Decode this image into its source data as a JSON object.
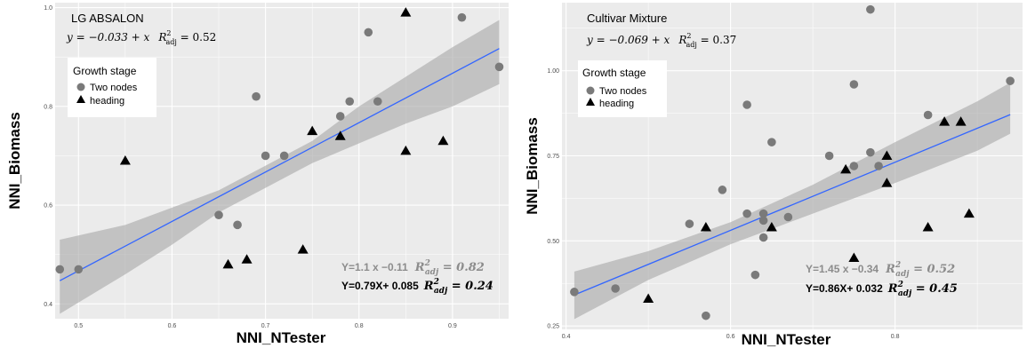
{
  "chart_data": [
    {
      "type": "scatter",
      "title": "LG ABSALON",
      "xlabel": "NNI_NTester",
      "ylabel": "NNI_Biomass",
      "xlim": [
        0.475,
        0.96
      ],
      "ylim": [
        0.37,
        1.01
      ],
      "x_ticks": [
        "0.5",
        "0.6",
        "0.7",
        "0.8",
        "0.9"
      ],
      "x_tick_values": [
        0.5,
        0.6,
        0.7,
        0.8,
        0.9
      ],
      "y_ticks": [
        "0.4",
        "0.6",
        "0.8",
        "1.0"
      ],
      "y_tick_values": [
        0.4,
        0.6,
        0.8,
        1.0
      ],
      "grid": true,
      "legend": {
        "title": "Growth stage",
        "position": "top-left",
        "entries": [
          "Two nodes",
          "heading"
        ]
      },
      "equation_top": {
        "main": "y = −0.033 + x",
        "r_label": "R",
        "r_sup": "2",
        "r_sub": "adj",
        "r_value": " = 0.52"
      },
      "fit_line": {
        "intercept": -0.033,
        "slope": 1.0,
        "color": "#3366ff"
      },
      "confidence_band": {
        "x": [
          0.48,
          0.55,
          0.6,
          0.65,
          0.7,
          0.75,
          0.8,
          0.85,
          0.9,
          0.95
        ],
        "upper": [
          0.53,
          0.56,
          0.595,
          0.63,
          0.68,
          0.73,
          0.8,
          0.86,
          0.92,
          0.975
        ],
        "lower": [
          0.38,
          0.46,
          0.52,
          0.585,
          0.635,
          0.685,
          0.725,
          0.765,
          0.8,
          0.845
        ]
      },
      "series": [
        {
          "name": "Two nodes",
          "marker": "circle",
          "color": "#7a7a7a",
          "x": [
            0.48,
            0.5,
            0.65,
            0.67,
            0.69,
            0.7,
            0.72,
            0.78,
            0.79,
            0.81,
            0.82,
            0.91,
            0.95
          ],
          "y": [
            0.47,
            0.47,
            0.58,
            0.56,
            0.82,
            0.7,
            0.7,
            0.78,
            0.81,
            0.95,
            0.81,
            0.98,
            0.88
          ]
        },
        {
          "name": "heading",
          "marker": "triangle",
          "color": "#000000",
          "x": [
            0.55,
            0.66,
            0.68,
            0.74,
            0.75,
            0.78,
            0.85,
            0.85,
            0.89
          ],
          "y": [
            0.69,
            0.48,
            0.49,
            0.51,
            0.75,
            0.74,
            0.99,
            0.71,
            0.73
          ]
        }
      ],
      "annotations": [
        {
          "text": "Y=1.1 x  −0.11",
          "r2": "R²adj = 0.82",
          "color": "grey"
        },
        {
          "text": "Y=0.79X+ 0.085",
          "r2": "R²adj = 0.24",
          "color": "black"
        }
      ]
    },
    {
      "type": "scatter",
      "title": "Cultivar Mixture",
      "xlabel": "NNI_NTester",
      "ylabel": "NNI_Biomass",
      "xlim": [
        0.395,
        0.955
      ],
      "ylim": [
        0.24,
        1.2
      ],
      "x_ticks": [
        "0.4",
        "0.6",
        "0.8"
      ],
      "x_tick_values": [
        0.4,
        0.6,
        0.8
      ],
      "y_ticks": [
        "0.25",
        "0.50",
        "0.75",
        "1.00"
      ],
      "y_tick_values": [
        0.25,
        0.5,
        0.75,
        1.0
      ],
      "grid": true,
      "legend": {
        "title": "Growth stage",
        "position": "top-left",
        "entries": [
          "Two nodes",
          "heading"
        ]
      },
      "equation_top": {
        "main": "y = −0.069 + x",
        "r_label": "R",
        "r_sup": "2",
        "r_sub": "adj",
        "r_value": " = 0.37"
      },
      "fit_line": {
        "intercept": -0.069,
        "slope": 1.0,
        "color": "#3366ff"
      },
      "confidence_band": {
        "x": [
          0.41,
          0.5,
          0.6,
          0.7,
          0.8,
          0.9,
          0.94
        ],
        "upper": [
          0.41,
          0.47,
          0.555,
          0.665,
          0.79,
          0.91,
          0.965
        ],
        "lower": [
          0.27,
          0.385,
          0.49,
          0.58,
          0.67,
          0.765,
          0.815
        ]
      },
      "series": [
        {
          "name": "Two nodes",
          "marker": "circle",
          "color": "#7a7a7a",
          "x": [
            0.41,
            0.46,
            0.55,
            0.57,
            0.59,
            0.62,
            0.62,
            0.63,
            0.64,
            0.64,
            0.64,
            0.65,
            0.67,
            0.72,
            0.75,
            0.75,
            0.77,
            0.77,
            0.78,
            0.84,
            0.94
          ],
          "y": [
            0.35,
            0.36,
            0.55,
            0.28,
            0.65,
            0.9,
            0.58,
            0.4,
            0.56,
            0.51,
            0.58,
            0.79,
            0.57,
            0.75,
            0.96,
            0.72,
            0.76,
            1.18,
            0.72,
            0.87,
            0.97
          ]
        },
        {
          "name": "heading",
          "marker": "triangle",
          "color": "#000000",
          "x": [
            0.5,
            0.57,
            0.65,
            0.74,
            0.75,
            0.79,
            0.79,
            0.84,
            0.86,
            0.88,
            0.89
          ],
          "y": [
            0.33,
            0.54,
            0.54,
            0.71,
            0.45,
            0.67,
            0.75,
            0.54,
            0.85,
            0.85,
            0.58
          ]
        }
      ],
      "annotations": [
        {
          "text": "Y=1.45 x  −0.34",
          "r2": "R²adj = 0.52",
          "color": "grey"
        },
        {
          "text": "Y=0.86X+ 0.032",
          "r2": "R²adj = 0.45",
          "color": "black"
        }
      ]
    }
  ]
}
